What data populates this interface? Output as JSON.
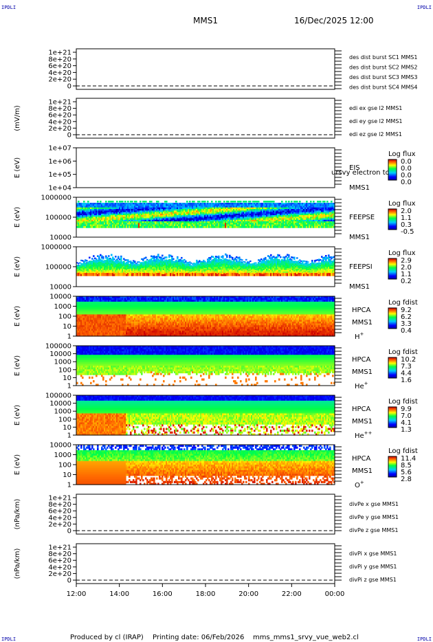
{
  "corner_labels": {
    "tl": "IPDLI",
    "tr": "IPDLI",
    "bl": "IPDLI",
    "br": "IPDLI"
  },
  "header": {
    "mission": "MMS1",
    "datetime": "16/Dec/2025 12:00"
  },
  "footer": {
    "produced_by": "Produced by cl (IRAP)",
    "printing_date": "Printing date: 06/Feb/2026",
    "filename": "mms_mms1_srvy_vue_web2.cl"
  },
  "colors": {
    "red": "#dd0000",
    "green": "#00cc00",
    "blue": "#0000cc",
    "magenta": "#cc00cc"
  },
  "chart_data": [
    {
      "type": "line",
      "id": "des",
      "ylabel": "",
      "yticks": [
        "0",
        "2e+20",
        "4e+20",
        "6e+20",
        "8e+20",
        "1e+21"
      ],
      "legend": [
        {
          "text": "des dist burst SC1 MMS1",
          "color": "#0000cc"
        },
        {
          "text": "des dist burst SC2 MMS2",
          "color": "#cc00cc"
        },
        {
          "text": "des dist burst SC3 MMS3",
          "color": "#cc0000"
        },
        {
          "text": "des dist burst SC4 MMS4",
          "color": "#00cc00"
        }
      ]
    },
    {
      "type": "line",
      "id": "edi",
      "ylabel": "(mV/m)",
      "yticks": [
        "0",
        "2e+20",
        "4e+20",
        "6e+20",
        "8e+20",
        "1e+21"
      ],
      "legend": [
        {
          "text": "edi ex gse l2 MMS1",
          "color": "#dd0000"
        },
        {
          "text": "edi ey gse l2 MMS1",
          "color": "#00cc00"
        },
        {
          "text": "edi ez gse l2 MMS1",
          "color": "#0000cc"
        }
      ]
    },
    {
      "type": "heatmap",
      "id": "eis",
      "ylabel": "E (eV)",
      "yticks": [
        "1e+04",
        "1e+05",
        "1e+06",
        "1e+07"
      ],
      "right_labels": [
        "EIS",
        "MMS1"
      ],
      "overlay_text": "ursvy electron to",
      "cbar_title": "Log flux",
      "cbar_ticks": [
        "0.0",
        "0.0",
        "0.0",
        "0.0"
      ],
      "empty": true
    },
    {
      "type": "heatmap",
      "id": "feepse",
      "ylabel": "E (eV)",
      "yticks": [
        "10000",
        "100000",
        "1000000"
      ],
      "right_labels": [
        "FEEPSE",
        "MMS1"
      ],
      "cbar_title": "Log flux",
      "cbar_ticks": [
        "2.0",
        "1.1",
        "0.3",
        "-0.5"
      ]
    },
    {
      "type": "heatmap",
      "id": "feepsi",
      "ylabel": "E (eV)",
      "yticks": [
        "10000",
        "100000",
        "1000000"
      ],
      "right_labels": [
        "FEEPSI",
        "MMS1"
      ],
      "cbar_title": "Log flux",
      "cbar_ticks": [
        "2.9",
        "2.0",
        "1.1",
        "0.2"
      ]
    },
    {
      "type": "heatmap",
      "id": "hpca_h",
      "ylabel": "E (eV)",
      "yticks": [
        "1",
        "10",
        "100",
        "1000",
        "10000"
      ],
      "right_labels": [
        "HPCA",
        "MMS1"
      ],
      "species": "H",
      "charge": "+",
      "cbar_title": "Log fdist",
      "cbar_ticks": [
        "9.2",
        "6.2",
        "3.3",
        "0.4"
      ]
    },
    {
      "type": "heatmap",
      "id": "hpca_he",
      "ylabel": "E (eV)",
      "yticks": [
        "1",
        "10",
        "100",
        "1000",
        "10000",
        "100000"
      ],
      "right_labels": [
        "HPCA",
        "MMS1"
      ],
      "species": "He",
      "charge": "+",
      "cbar_title": "Log fdist",
      "cbar_ticks": [
        "10.2",
        "7.3",
        "4.4",
        "1.6"
      ]
    },
    {
      "type": "heatmap",
      "id": "hpca_he2",
      "ylabel": "E (eV)",
      "yticks": [
        "1",
        "10",
        "100",
        "1000",
        "10000",
        "100000"
      ],
      "right_labels": [
        "HPCA",
        "MMS1"
      ],
      "species": "He",
      "charge": "++",
      "cbar_title": "Log fdist",
      "cbar_ticks": [
        "9.9",
        "7.0",
        "4.1",
        "1.3"
      ]
    },
    {
      "type": "heatmap",
      "id": "hpca_o",
      "ylabel": "E (eV)",
      "yticks": [
        "1",
        "10",
        "100",
        "1000",
        "10000"
      ],
      "right_labels": [
        "HPCA",
        "MMS1"
      ],
      "species": "O",
      "charge": "+",
      "cbar_title": "Log fdist",
      "cbar_ticks": [
        "11.4",
        "8.5",
        "5.6",
        "2.8"
      ]
    },
    {
      "type": "line",
      "id": "divpe",
      "ylabel": "(nPa/km)",
      "yticks": [
        "0",
        "2e+20",
        "4e+20",
        "6e+20",
        "8e+20",
        "1e+21"
      ],
      "legend": [
        {
          "text": "divPe x gse MMS1",
          "color": "#dd0000"
        },
        {
          "text": "divPe y gse MMS1",
          "color": "#00cc00"
        },
        {
          "text": "divPe z gse MMS1",
          "color": "#0000cc"
        }
      ]
    },
    {
      "type": "line",
      "id": "divpi",
      "ylabel": "(nPa/km)",
      "yticks": [
        "0",
        "2e+20",
        "4e+20",
        "6e+20",
        "8e+20",
        "1e+21"
      ],
      "legend": [
        {
          "text": "divPi x gse MMS1",
          "color": "#dd0000"
        },
        {
          "text": "divPi y gse MMS1",
          "color": "#00cc00"
        },
        {
          "text": "divPi z gse MMS1",
          "color": "#0000cc"
        }
      ]
    }
  ],
  "xaxis": {
    "ticks": [
      "12:00",
      "14:00",
      "16:00",
      "18:00",
      "20:00",
      "22:00",
      "00:00"
    ],
    "range_hours": [
      0,
      12
    ]
  }
}
